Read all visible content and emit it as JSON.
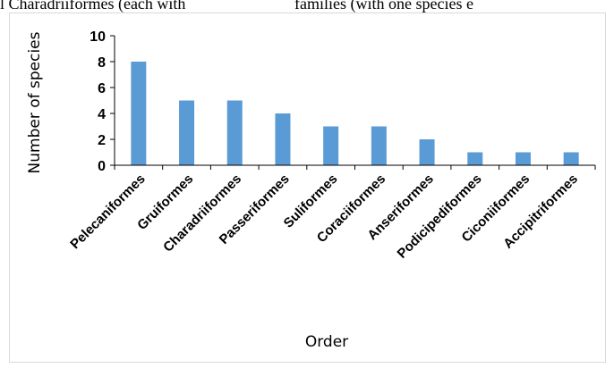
{
  "top_text": {
    "left": "l Charadriiformes (each with",
    "right": "families (with one species e"
  },
  "chart_data": {
    "type": "bar",
    "categories": [
      "Pelecaniformes",
      "Gruiformes",
      "Charadriiformes",
      "Passeriformes",
      "Suliformes",
      "Coraciiformes",
      "Anseriformes",
      "Podicipediformes",
      "Ciconiiformes",
      "Accipitriformes"
    ],
    "values": [
      8,
      5,
      5,
      4,
      3,
      3,
      2,
      1,
      1,
      1
    ],
    "yticks": [
      0,
      2,
      4,
      6,
      8,
      10
    ],
    "ylim": [
      0,
      10
    ],
    "xlabel": "Order",
    "ylabel": "Number of species",
    "bar_color": "#5b9bd5",
    "grid": false
  }
}
